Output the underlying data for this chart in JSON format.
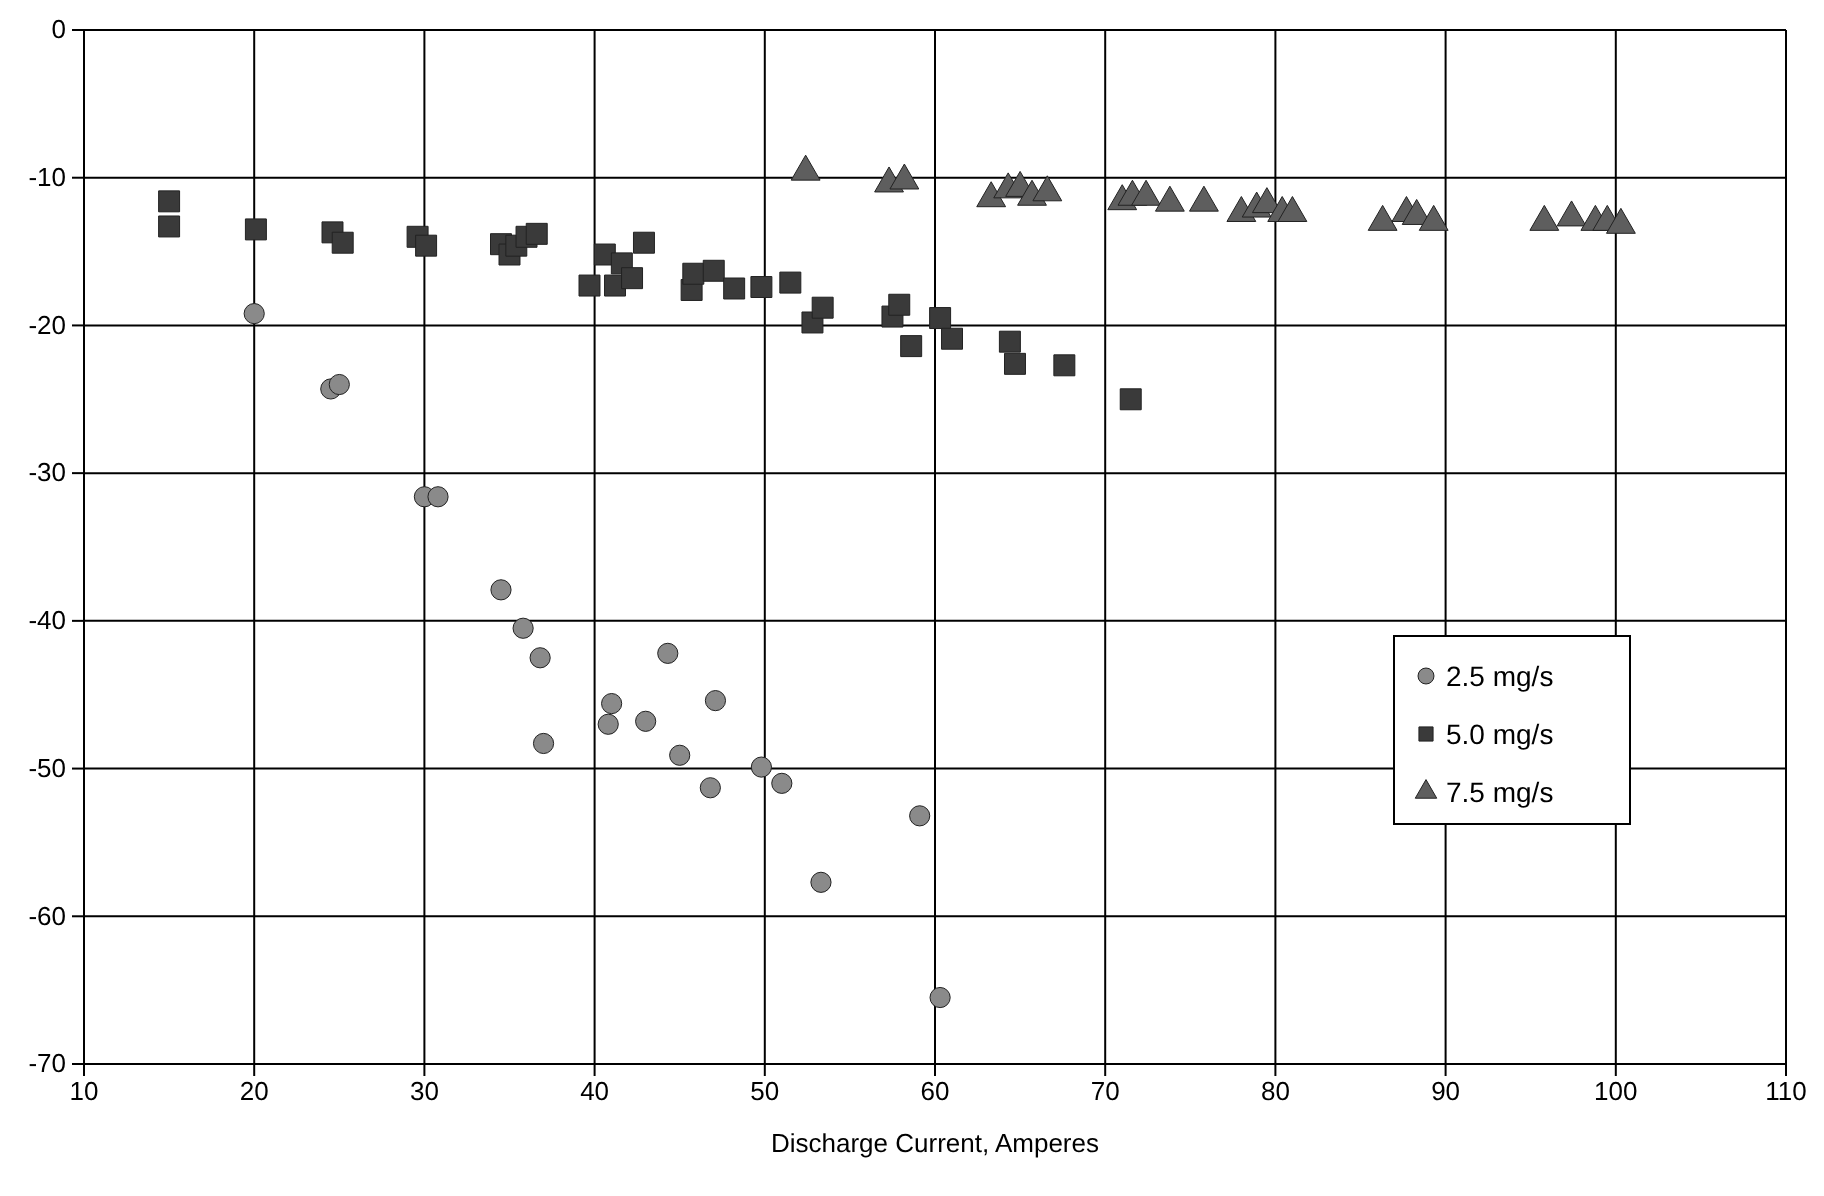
{
  "chart_data": {
    "type": "scatter",
    "xlabel": "Discharge Current, Amperes",
    "xlim": [
      10,
      110
    ],
    "xticks": [
      10,
      20,
      30,
      40,
      50,
      60,
      70,
      80,
      90,
      100,
      110
    ],
    "ylim": [
      -70,
      0
    ],
    "yticks": [
      -70,
      -60,
      -50,
      -40,
      -30,
      -20,
      -10,
      0
    ],
    "grid": true,
    "legend": "bottom right",
    "series": [
      {
        "name": "2.5 mg/s",
        "color": "#8a8a8a",
        "marker": "circle",
        "x": [
          20,
          24.5,
          25,
          30,
          30.8,
          34.5,
          35.8,
          36.8,
          37,
          40.8,
          41,
          43,
          44.3,
          45,
          46.8,
          47.1,
          49.8,
          51,
          53.3,
          59.1,
          60.3
        ],
        "values": [
          -19.2,
          -24.3,
          -24,
          -31.6,
          -31.6,
          -37.9,
          -40.5,
          -42.5,
          -48.3,
          -47,
          -45.6,
          -46.8,
          -42.2,
          -49.1,
          -51.3,
          -45.4,
          -49.9,
          -51,
          -57.7,
          -53.2,
          -65.5
        ]
      },
      {
        "name": "5.0 mg/s",
        "color": "#3a3a3a",
        "marker": "square",
        "x": [
          15,
          15,
          20.1,
          24.6,
          25.2,
          29.6,
          30.1,
          34.5,
          35,
          35.4,
          36,
          36.6,
          39.7,
          40.6,
          41.2,
          41.6,
          42.2,
          42.9,
          45.7,
          45.8,
          47,
          48.2,
          49.8,
          51.5,
          52.8,
          53.4,
          57.5,
          57.9,
          58.6,
          60.3,
          61,
          64.4,
          64.7,
          67.6,
          71.5
        ],
        "values": [
          -11.6,
          -13.3,
          -13.5,
          -13.7,
          -14.4,
          -14,
          -14.6,
          -14.5,
          -15.2,
          -14.6,
          -14,
          -13.8,
          -17.3,
          -15.2,
          -17.3,
          -15.8,
          -16.8,
          -14.4,
          -17.6,
          -16.5,
          -16.3,
          -17.5,
          -17.4,
          -17.1,
          -19.8,
          -18.8,
          -19.4,
          -18.6,
          -21.4,
          -19.5,
          -20.9,
          -21.1,
          -22.6,
          -22.7,
          -25
        ]
      },
      {
        "name": "7.5 mg/s",
        "color": "#5e5e5e",
        "marker": "triangle",
        "x": [
          52.4,
          57.3,
          58.2,
          63.3,
          64.3,
          65,
          65.7,
          66.6,
          71,
          71.6,
          72.4,
          73.8,
          75.8,
          78,
          78.9,
          79.5,
          80.4,
          81,
          86.3,
          87.7,
          88.3,
          89.3,
          95.8,
          97.4,
          98.8,
          99.5,
          100.3
        ],
        "values": [
          -9.6,
          -10.4,
          -10.2,
          -11.4,
          -10.8,
          -10.7,
          -11.3,
          -11,
          -11.6,
          -11.3,
          -11.3,
          -11.7,
          -11.7,
          -12.4,
          -12.1,
          -11.8,
          -12.4,
          -12.4,
          -13,
          -12.4,
          -12.6,
          -13,
          -13,
          -12.7,
          -13,
          -13,
          -13.2
        ]
      }
    ]
  }
}
